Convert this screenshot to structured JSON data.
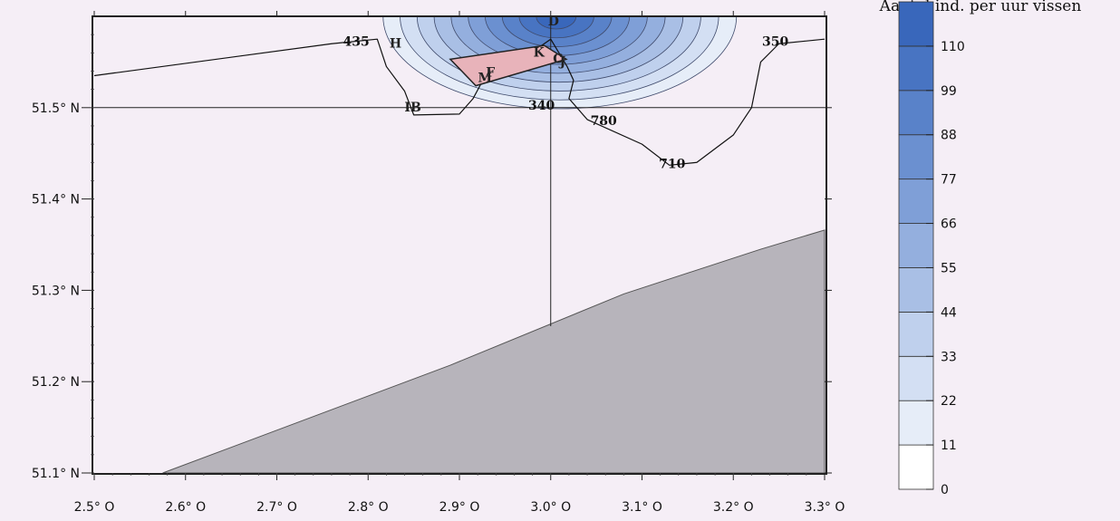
{
  "chart_data": {
    "type": "contour-map",
    "title": "",
    "xlabel": "",
    "ylabel": "",
    "xlim": [
      2.5,
      3.3
    ],
    "ylim": [
      51.1,
      51.6
    ],
    "x_ticks": [
      {
        "value": 2.5,
        "label": "2.5° O"
      },
      {
        "value": 2.6,
        "label": "2.6° O"
      },
      {
        "value": 2.7,
        "label": "2.7° O"
      },
      {
        "value": 2.8,
        "label": "2.8° O"
      },
      {
        "value": 2.9,
        "label": "2.9° O"
      },
      {
        "value": 3.0,
        "label": "3.0° O"
      },
      {
        "value": 3.1,
        "label": "3.1° O"
      },
      {
        "value": 3.2,
        "label": "3.2° O"
      },
      {
        "value": 3.3,
        "label": "3.3° O"
      }
    ],
    "y_ticks": [
      {
        "value": 51.1,
        "label": "51.1° N"
      },
      {
        "value": 51.2,
        "label": "51.2° N"
      },
      {
        "value": 51.3,
        "label": "51.3° N"
      },
      {
        "value": 51.4,
        "label": "51.4° N"
      },
      {
        "value": 51.5,
        "label": "51.5° N"
      }
    ],
    "colorbar": {
      "title": "Aantal ind. per uur vissen",
      "levels": [
        0,
        11,
        22,
        33,
        44,
        55,
        66,
        77,
        88,
        99,
        110
      ],
      "max_shown": 121,
      "colors": [
        "#ffffff",
        "#e6edf8",
        "#d3dff3",
        "#bfd0ed",
        "#a9bfe5",
        "#94afde",
        "#7f9fd7",
        "#6b90d0",
        "#5982c9",
        "#4874c2",
        "#3967bb"
      ]
    },
    "land": {
      "color": "#b7b4bb",
      "coast": [
        [
          2.575,
          51.1
        ],
        [
          2.89,
          51.218
        ],
        [
          3.08,
          51.296
        ],
        [
          3.23,
          51.345
        ],
        [
          3.3,
          51.366
        ]
      ]
    },
    "grid_lines": {
      "lon": 3.0,
      "lat": 51.5
    },
    "contour_labels": [
      {
        "text": "435",
        "lon": 2.787,
        "lat": 51.568
      },
      {
        "text": "350",
        "lon": 3.246,
        "lat": 51.568
      },
      {
        "text": "340",
        "lon": 2.99,
        "lat": 51.498
      },
      {
        "text": "780",
        "lon": 3.058,
        "lat": 51.481
      },
      {
        "text": "710",
        "lon": 3.133,
        "lat": 51.434
      }
    ],
    "contour_paths": [
      [
        [
          2.5,
          51.535
        ],
        [
          2.76,
          51.57
        ],
        [
          2.81,
          51.575
        ],
        [
          2.82,
          51.545
        ],
        [
          2.84,
          51.518
        ],
        [
          2.85,
          51.492
        ],
        [
          2.9,
          51.493
        ],
        [
          2.915,
          51.51
        ],
        [
          2.93,
          51.538
        ],
        [
          2.93,
          51.548
        ],
        [
          2.99,
          51.568
        ],
        [
          3.0,
          51.575
        ]
      ],
      [
        [
          3.0,
          51.575
        ],
        [
          3.018,
          51.545
        ],
        [
          3.025,
          51.53
        ],
        [
          3.02,
          51.51
        ],
        [
          3.04,
          51.487
        ],
        [
          3.1,
          51.46
        ],
        [
          3.13,
          51.437
        ],
        [
          3.16,
          51.44
        ],
        [
          3.2,
          51.47
        ],
        [
          3.22,
          51.5
        ],
        [
          3.23,
          51.55
        ],
        [
          3.25,
          51.57
        ],
        [
          3.3,
          51.575
        ]
      ]
    ],
    "stations": [
      {
        "label": "D",
        "lon": 3.003,
        "lat": 51.59
      },
      {
        "label": "H",
        "lon": 2.83,
        "lat": 51.566
      },
      {
        "label": "IB",
        "lon": 2.849,
        "lat": 51.496
      },
      {
        "label": "M",
        "lon": 2.928,
        "lat": 51.528
      },
      {
        "label": "F",
        "lon": 2.934,
        "lat": 51.534
      },
      {
        "label": "K",
        "lon": 2.987,
        "lat": 51.556
      },
      {
        "label": "C",
        "lon": 3.008,
        "lat": 51.549
      },
      {
        "label": "J",
        "lon": 3.013,
        "lat": 51.546
      }
    ],
    "polygon_color": "#e8b3ba",
    "polygon": [
      [
        2.89,
        51.553
      ],
      [
        2.993,
        51.568
      ],
      [
        3.017,
        51.553
      ],
      [
        2.918,
        51.524
      ]
    ],
    "hotspot": {
      "lon": 3.0,
      "lat": 51.6
    }
  }
}
